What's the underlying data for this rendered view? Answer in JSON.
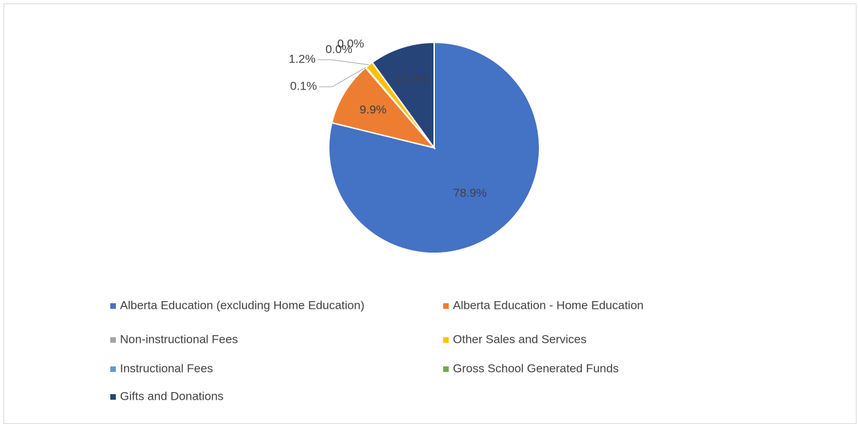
{
  "chart_data": {
    "type": "pie",
    "categories": [
      "Alberta Education (excluding Home Education)",
      "Alberta Education - Home Education",
      "Non-instructional Fees",
      "Other Sales and Services",
      "Instructional Fees",
      "Gross School Generated Funds",
      "Gifts and Donations"
    ],
    "values": [
      78.9,
      9.9,
      0.1,
      1.2,
      0.0,
      0.0,
      10.0
    ],
    "value_labels": [
      "78.9%",
      "9.9%",
      "0.1%",
      "1.2%",
      "0.0%",
      "0.0%",
      "10.0%"
    ],
    "colors": [
      "#4472c4",
      "#ed7d31",
      "#a5a5a5",
      "#ffc000",
      "#5b9bd5",
      "#70ad47",
      "#264478"
    ],
    "legend": "bottom"
  }
}
